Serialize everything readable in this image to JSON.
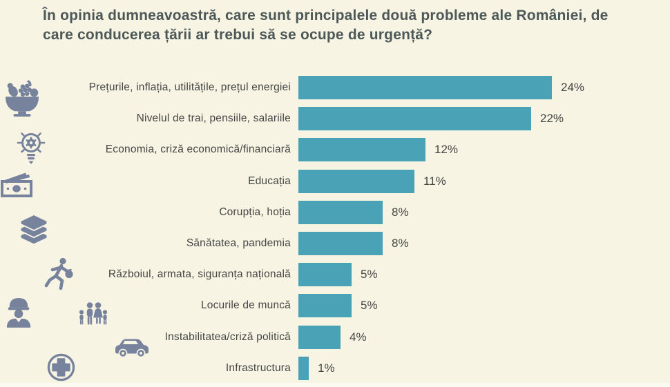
{
  "title": "În opinia dumneavoastră, care sunt principalele două probleme ale României, de care conducerea țării ar trebui să se ocupe de urgență?",
  "colors": {
    "background": "#f7f4e3",
    "bar": "#49a2b5",
    "title_text": "#4d5858",
    "label_text": "#454545",
    "icon": "#77839d"
  },
  "chart_data": {
    "type": "bar",
    "orientation": "horizontal",
    "title": "În opinia dumneavoastră, care sunt principalele două probleme ale României, de care conducerea țării ar trebui să se ocupe de urgență?",
    "unit": "%",
    "xlim": [
      0,
      24
    ],
    "grid": false,
    "legend": false,
    "categories": [
      "Prețurile, inflația, utilitățile, prețul energiei",
      "Nivelul de trai, pensiile, salariile",
      "Economia, criză economică/financiară",
      "Educația",
      "Corupția, hoția",
      "Sănătatea, pandemia",
      "Războiul, armata, siguranța națională",
      "Locurile de muncă",
      "Instabilitatea/criză politică",
      "Infrastructura"
    ],
    "values": [
      24,
      22,
      12,
      11,
      8,
      8,
      5,
      5,
      4,
      1
    ],
    "value_labels": [
      "24%",
      "22%",
      "12%",
      "11%",
      "8%",
      "8%",
      "5%",
      "5%",
      "4%",
      "1%"
    ]
  },
  "icons": [
    "fruit-bowl-icon",
    "lightbulb-gear-icon",
    "banknotes-icon",
    "books-icon",
    "running-thief-icon",
    "soldier-icon",
    "family-icon",
    "car-icon",
    "medical-cross-icon"
  ]
}
